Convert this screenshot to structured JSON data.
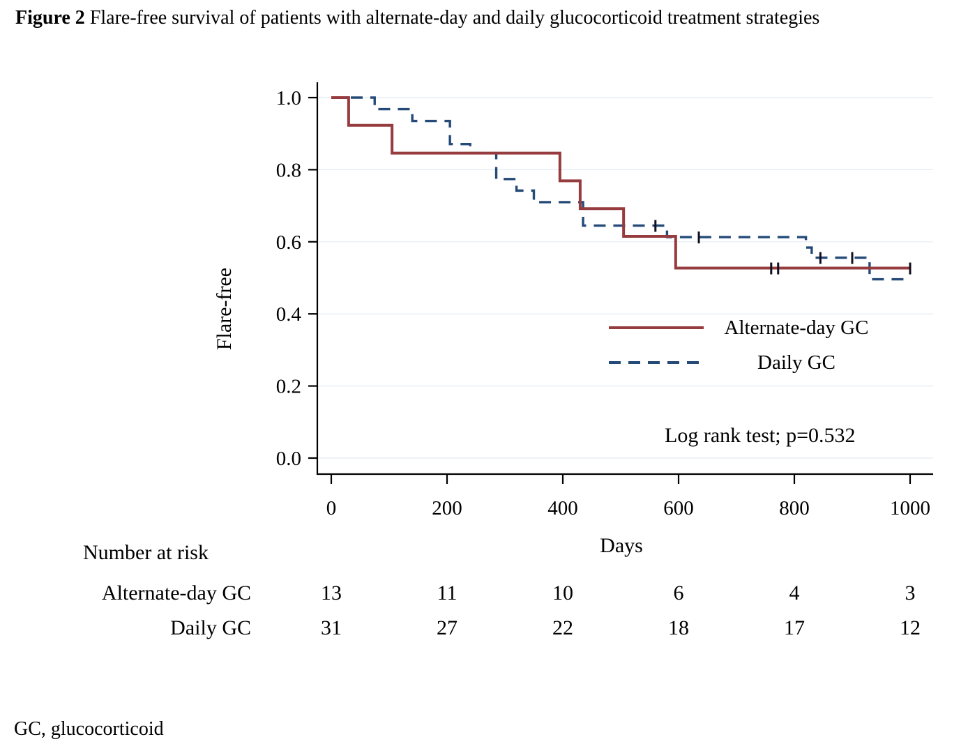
{
  "figure": {
    "label": "Figure 2",
    "title": "Flare-free survival of patients with alternate-day and daily glucocorticoid treatment strategies",
    "footnote": "GC, glucocorticoid"
  },
  "chart_data": {
    "type": "line",
    "subtype": "kaplan-meier-survival-step",
    "title": "",
    "xlabel": "Days",
    "ylabel": "Flare-free",
    "xlim": [
      0,
      1000
    ],
    "ylim": [
      0,
      1
    ],
    "xticks": [
      0,
      200,
      400,
      600,
      800,
      1000
    ],
    "yticks": [
      0,
      0.2,
      0.4,
      0.6,
      0.8,
      1
    ],
    "grid": "horizontal",
    "legend_position": "inside-right-middle",
    "annotation": "Log rank test; p=0.532",
    "colors": {
      "axis": "#000000",
      "grid": "#e4ebf3",
      "censor": "#101020"
    },
    "series": [
      {
        "name": "Alternate-day GC",
        "style": "solid",
        "color": "#963c3f",
        "steps": [
          [
            0,
            1.0
          ],
          [
            30,
            0.923
          ],
          [
            105,
            0.846
          ],
          [
            395,
            0.769
          ],
          [
            430,
            0.692
          ],
          [
            505,
            0.615
          ],
          [
            595,
            0.527
          ]
        ],
        "censor_marks": [
          [
            760,
            0.527
          ],
          [
            772,
            0.527
          ],
          [
            1000,
            0.527
          ]
        ]
      },
      {
        "name": "Daily GC",
        "style": "dashed",
        "color": "#254a78",
        "steps": [
          [
            0,
            1.0
          ],
          [
            75,
            0.968
          ],
          [
            140,
            0.935
          ],
          [
            205,
            0.871
          ],
          [
            240,
            0.846
          ],
          [
            285,
            0.774
          ],
          [
            320,
            0.742
          ],
          [
            350,
            0.71
          ],
          [
            435,
            0.645
          ],
          [
            580,
            0.613
          ],
          [
            820,
            0.584
          ],
          [
            830,
            0.556
          ],
          [
            930,
            0.496
          ]
        ],
        "censor_marks": [
          [
            560,
            0.645
          ],
          [
            635,
            0.613
          ],
          [
            845,
            0.556
          ],
          [
            900,
            0.556
          ]
        ]
      }
    ],
    "risk_table": {
      "label": "Number at risk",
      "times": [
        0,
        200,
        400,
        600,
        800,
        1000
      ],
      "rows": [
        {
          "name": "Alternate-day GC",
          "counts": [
            13,
            11,
            10,
            6,
            4,
            3
          ]
        },
        {
          "name": "Daily GC",
          "counts": [
            31,
            27,
            22,
            18,
            17,
            12
          ]
        }
      ]
    }
  }
}
